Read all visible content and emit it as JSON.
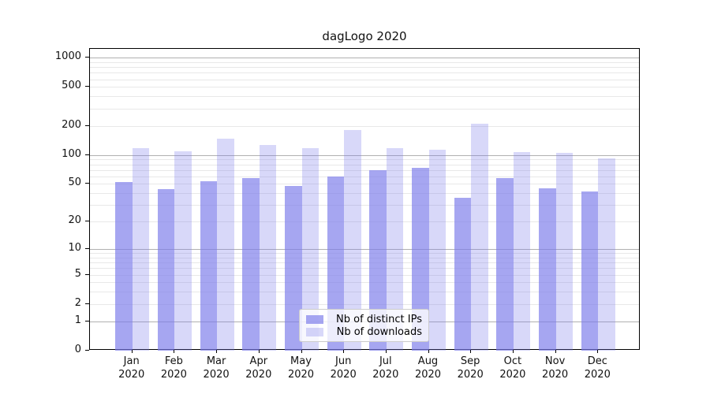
{
  "figure": {
    "background": "#ffffff",
    "axis_color": "#000000",
    "grid_major_color": "#b0b0b0",
    "grid_minor_color": "#e8e8e8",
    "tick_label_color": "#111111"
  },
  "chart_data": {
    "type": "bar",
    "title": "dagLogo 2020",
    "xlabel": "",
    "ylabel": "",
    "categories": [
      "Jan\n2020",
      "Feb\n2020",
      "Mar\n2020",
      "Apr\n2020",
      "May\n2020",
      "Jun\n2020",
      "Jul\n2020",
      "Aug\n2020",
      "Sep\n2020",
      "Oct\n2020",
      "Nov\n2020",
      "Dec\n2020"
    ],
    "series": [
      {
        "name": "Nb of distinct IPs",
        "color": "rgba(122,122,234,0.67)",
        "values": [
          52,
          44,
          53,
          57,
          48,
          60,
          69,
          74,
          36,
          58,
          45,
          42
        ]
      },
      {
        "name": "Nb of downloads",
        "color": "rgba(122,122,234,0.29)",
        "values": [
          118,
          110,
          147,
          127,
          117,
          180,
          117,
          113,
          209,
          107,
          105,
          92
        ]
      }
    ],
    "yscale": "log1p",
    "ylim": [
      0,
      1230
    ],
    "yticks": [
      0,
      1,
      2,
      5,
      10,
      20,
      50,
      100,
      200,
      500,
      1000
    ],
    "ytick_labels": [
      "0",
      "1",
      "2",
      "5",
      "10",
      "20",
      "50",
      "100",
      "200",
      "500",
      "1000"
    ],
    "grid_major_at": [
      1,
      10,
      100,
      1000
    ],
    "grid_minor_decades": [
      1,
      10,
      100
    ],
    "bar_group_width": 0.8,
    "legend": {
      "position": "bottom-center",
      "entries": [
        "Nb of distinct IPs",
        "Nb of downloads"
      ]
    }
  }
}
